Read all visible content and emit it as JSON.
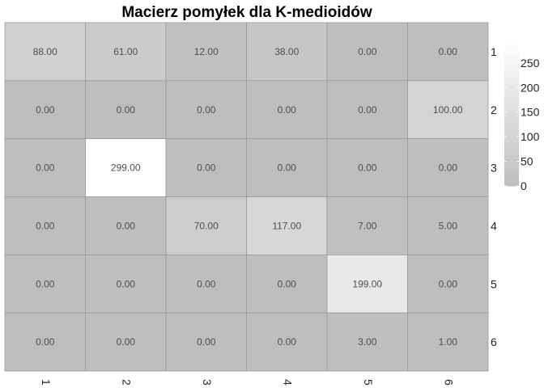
{
  "chart_data": {
    "type": "heatmap",
    "title": "Macierz pomyłek dla K-medioidów",
    "x_labels": [
      "1",
      "2",
      "3",
      "4",
      "5",
      "6"
    ],
    "y_labels": [
      "1",
      "2",
      "3",
      "4",
      "5",
      "6"
    ],
    "values": [
      [
        88,
        61,
        12,
        38,
        0,
        0
      ],
      [
        0,
        0,
        0,
        0,
        0,
        100
      ],
      [
        0,
        299,
        0,
        0,
        0,
        0
      ],
      [
        0,
        0,
        70,
        117,
        7,
        5
      ],
      [
        0,
        0,
        0,
        0,
        199,
        0
      ],
      [
        0,
        0,
        0,
        0,
        3,
        1
      ]
    ],
    "cell_labels": [
      [
        "88.00",
        "61.00",
        "12.00",
        "38.00",
        "0.00",
        "0.00"
      ],
      [
        "0.00",
        "0.00",
        "0.00",
        "0.00",
        "0.00",
        "100.00"
      ],
      [
        "0.00",
        "299.00",
        "0.00",
        "0.00",
        "0.00",
        "0.00"
      ],
      [
        "0.00",
        "0.00",
        "70.00",
        "117.00",
        "7.00",
        "5.00"
      ],
      [
        "0.00",
        "0.00",
        "0.00",
        "0.00",
        "199.00",
        "0.00"
      ],
      [
        "0.00",
        "0.00",
        "0.00",
        "0.00",
        "3.00",
        "1.00"
      ]
    ],
    "color_low": "#bebebe",
    "color_high": "#ffffff",
    "value_range": [
      0,
      299
    ],
    "legend": {
      "position": "right",
      "ticks": [
        0,
        50,
        100,
        150,
        200,
        250
      ],
      "tick_labels": [
        "0",
        "50",
        "100",
        "150",
        "200",
        "250"
      ]
    },
    "grid_color": "#999999"
  }
}
